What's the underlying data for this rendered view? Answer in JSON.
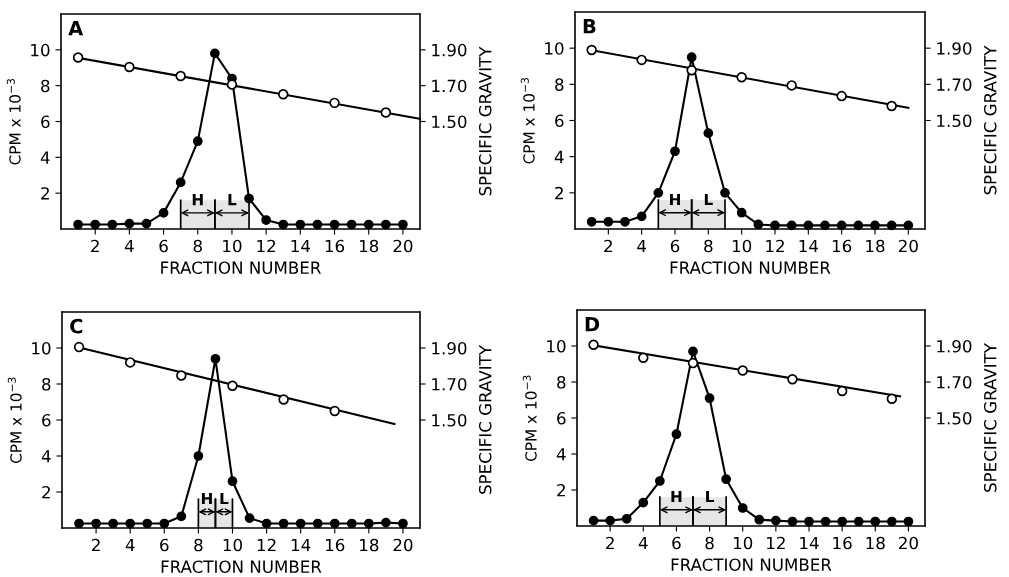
{
  "chart_data": [
    {
      "type": "line",
      "title": "A",
      "xlabel": "FRACTION NUMBER",
      "ylabel": "CPM x 10$^{−3}$",
      "y2label": "SPECIFIC GRAVITY",
      "xlim": [
        0,
        21
      ],
      "xticks": [
        2,
        4,
        6,
        8,
        10,
        12,
        14,
        16,
        18,
        20
      ],
      "ylim": [
        0,
        12
      ],
      "yticks": [
        2,
        4,
        6,
        8,
        10
      ],
      "y2lim": [
        0.9,
        2.1
      ],
      "y2ticks": [
        {
          "value": 1.9,
          "label": "1.90"
        },
        {
          "value": 1.7,
          "label": "1.70"
        },
        {
          "value": 1.5,
          "label": "1.50"
        }
      ],
      "series": [
        {
          "color": "#000000",
          "marker": "circle",
          "x": [
            1,
            2,
            3,
            4,
            5,
            6,
            7,
            8,
            9,
            10,
            11,
            12,
            13,
            14,
            15,
            16,
            17,
            18,
            19,
            20
          ],
          "values": [
            0.25,
            0.25,
            0.25,
            0.3,
            0.3,
            0.9,
            2.6,
            4.9,
            9.8,
            8.4,
            1.7,
            0.5,
            0.25,
            0.25,
            0.25,
            0.25,
            0.25,
            0.25,
            0.25,
            0.25
          ]
        },
        {
          "type": "scatter",
          "axis": "y2",
          "color": "#000000",
          "marker": "circle",
          "x": [
            1,
            4,
            7,
            10,
            13,
            16,
            19
          ],
          "values": [
            1.857,
            1.804,
            1.754,
            1.706,
            1.652,
            1.604,
            1.55
          ]
        },
        {
          "type": "line",
          "axis": "y2",
          "color": "#000000",
          "marker": "none",
          "x": [
            1,
            21
          ],
          "values": [
            1.855,
            1.515
          ]
        }
      ],
      "bands": [
        {
          "axis": "x",
          "from": 7,
          "to": 9,
          "label": "H"
        },
        {
          "axis": "x",
          "from": 9,
          "to": 11,
          "label": "L"
        }
      ]
    },
    {
      "type": "line",
      "title": "B",
      "xlabel": "FRACTION NUMBER",
      "ylabel": "CPM x 10$^{−3}$",
      "y2label": "SPECIFIC GRAVITY",
      "xlim": [
        0,
        21
      ],
      "xticks": [
        2,
        4,
        6,
        8,
        10,
        12,
        14,
        16,
        18,
        20
      ],
      "ylim": [
        0,
        12
      ],
      "yticks": [
        2,
        4,
        6,
        8,
        10
      ],
      "y2lim": [
        0.9,
        2.1
      ],
      "y2ticks": [
        {
          "value": 1.9,
          "label": "1.90"
        },
        {
          "value": 1.7,
          "label": "1.70"
        },
        {
          "value": 1.5,
          "label": "1.50"
        }
      ],
      "series": [
        {
          "color": "#000000",
          "marker": "circle",
          "x": [
            1,
            2,
            3,
            4,
            5,
            6,
            7,
            8,
            9,
            10,
            11,
            12,
            13,
            14,
            15,
            16,
            17,
            18,
            19,
            20
          ],
          "values": [
            0.4,
            0.4,
            0.4,
            0.7,
            2.0,
            4.3,
            9.5,
            5.3,
            2.0,
            0.9,
            0.25,
            0.2,
            0.2,
            0.2,
            0.2,
            0.2,
            0.2,
            0.2,
            0.2,
            0.2
          ]
        },
        {
          "type": "scatter",
          "axis": "y2",
          "color": "#000000",
          "marker": "circle",
          "x": [
            1,
            4,
            7,
            10,
            13,
            16,
            19
          ],
          "values": [
            1.89,
            1.835,
            1.778,
            1.739,
            1.694,
            1.635,
            1.58
          ]
        },
        {
          "type": "line",
          "axis": "y2",
          "color": "#000000",
          "marker": "none",
          "x": [
            1,
            20
          ],
          "values": [
            1.889,
            1.57
          ]
        }
      ],
      "bands": [
        {
          "axis": "x",
          "from": 5,
          "to": 7,
          "label": "H"
        },
        {
          "axis": "x",
          "from": 7,
          "to": 9,
          "label": "L"
        }
      ]
    },
    {
      "type": "line",
      "title": "C",
      "xlabel": "FRACTION NUMBER",
      "ylabel": "CPM x 10$^{−3}$",
      "y2label": "SPECIFIC GRAVITY",
      "xlim": [
        0,
        21
      ],
      "xticks": [
        2,
        4,
        6,
        8,
        10,
        12,
        14,
        16,
        18,
        20
      ],
      "ylim": [
        0,
        12
      ],
      "yticks": [
        2,
        4,
        6,
        8,
        10
      ],
      "y2lim": [
        0.9,
        2.1
      ],
      "y2ticks": [
        {
          "value": 1.9,
          "label": "1.90"
        },
        {
          "value": 1.7,
          "label": "1.70"
        },
        {
          "value": 1.5,
          "label": "1.50"
        }
      ],
      "series": [
        {
          "color": "#000000",
          "marker": "circle",
          "x": [
            1,
            2,
            3,
            4,
            5,
            6,
            7,
            8,
            9,
            10,
            11,
            12,
            13,
            14,
            15,
            16,
            17,
            18,
            19,
            20
          ],
          "values": [
            0.25,
            0.25,
            0.25,
            0.25,
            0.25,
            0.25,
            0.65,
            4.0,
            9.4,
            2.6,
            0.55,
            0.25,
            0.25,
            0.25,
            0.25,
            0.25,
            0.25,
            0.25,
            0.3,
            0.25
          ]
        },
        {
          "type": "scatter",
          "axis": "y2",
          "color": "#000000",
          "marker": "circle",
          "x": [
            1,
            4,
            7,
            10,
            13,
            16
          ],
          "values": [
            1.905,
            1.82,
            1.747,
            1.69,
            1.614,
            1.55
          ]
        },
        {
          "type": "line",
          "axis": "y2",
          "color": "#000000",
          "marker": "none",
          "x": [
            1,
            19.5
          ],
          "values": [
            1.903,
            1.478
          ]
        }
      ],
      "bands": [
        {
          "axis": "x",
          "from": 8,
          "to": 9,
          "label": "H"
        },
        {
          "axis": "x",
          "from": 9,
          "to": 10,
          "label": "L"
        }
      ]
    },
    {
      "type": "line",
      "title": "D",
      "xlabel": "FRACTION NUMBER",
      "ylabel": "CPM x 10$^{−3}$",
      "y2label": "SPECIFIC GRAVITY",
      "xlim": [
        0,
        21
      ],
      "xticks": [
        2,
        4,
        6,
        8,
        10,
        12,
        14,
        16,
        18,
        20
      ],
      "ylim": [
        0,
        12
      ],
      "yticks": [
        2,
        4,
        6,
        8,
        10
      ],
      "y2lim": [
        0.9,
        2.1
      ],
      "y2ticks": [
        {
          "value": 1.9,
          "label": "1.90"
        },
        {
          "value": 1.7,
          "label": "1.70"
        },
        {
          "value": 1.5,
          "label": "1.50"
        }
      ],
      "series": [
        {
          "color": "#000000",
          "marker": "circle",
          "x": [
            1,
            2,
            3,
            4,
            5,
            6,
            7,
            8,
            9,
            10,
            11,
            12,
            13,
            14,
            15,
            16,
            17,
            18,
            19,
            20
          ],
          "values": [
            0.3,
            0.3,
            0.4,
            1.3,
            2.5,
            5.1,
            9.7,
            7.1,
            2.6,
            1.0,
            0.35,
            0.3,
            0.25,
            0.25,
            0.25,
            0.25,
            0.25,
            0.25,
            0.25,
            0.25
          ]
        },
        {
          "type": "scatter",
          "axis": "y2",
          "color": "#000000",
          "marker": "circle",
          "x": [
            1,
            4,
            7,
            10,
            13,
            16,
            19
          ],
          "values": [
            1.907,
            1.835,
            1.805,
            1.764,
            1.715,
            1.65,
            1.607
          ]
        },
        {
          "type": "line",
          "axis": "y2",
          "color": "#000000",
          "marker": "none",
          "x": [
            1,
            19.5
          ],
          "values": [
            1.904,
            1.62
          ]
        }
      ],
      "bands": [
        {
          "axis": "x",
          "from": 5,
          "to": 7,
          "label": "H"
        },
        {
          "axis": "x",
          "from": 7,
          "to": 9,
          "label": "L"
        }
      ]
    }
  ]
}
